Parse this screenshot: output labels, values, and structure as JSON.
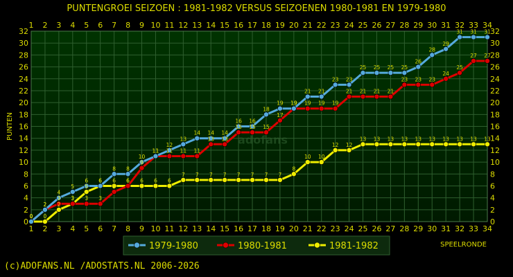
{
  "chart_data": {
    "type": "line",
    "title": "PUNTENGROEI  SEIZOEN : 1981-1982 VERSUS SEIZOENEN 1980-1981 EN 1979-1980",
    "ylabel": "PUNTEN",
    "xlabel": "SPEELRONDE",
    "x": [
      1,
      2,
      3,
      4,
      5,
      6,
      7,
      8,
      9,
      10,
      11,
      12,
      13,
      14,
      15,
      16,
      17,
      18,
      19,
      20,
      21,
      22,
      23,
      24,
      25,
      26,
      27,
      28,
      29,
      30,
      31,
      32,
      33,
      34
    ],
    "xlim": [
      1,
      34
    ],
    "ylim": [
      0,
      32
    ],
    "yticks": [
      0,
      2,
      4,
      6,
      8,
      10,
      12,
      14,
      16,
      18,
      20,
      22,
      24,
      26,
      28,
      30,
      32
    ],
    "grid": true,
    "legend_position": "bottom",
    "series": [
      {
        "name": "1979-1980",
        "color": "#55aadd",
        "values": [
          0,
          2,
          4,
          5,
          6,
          6,
          8,
          8,
          10,
          11,
          12,
          13,
          14,
          14,
          14,
          16,
          16,
          18,
          19,
          19,
          21,
          21,
          23,
          23,
          25,
          25,
          25,
          25,
          26,
          28,
          29,
          31,
          31,
          31
        ]
      },
      {
        "name": "1980-1981",
        "color": "#dd0000",
        "values": [
          0,
          2,
          3,
          3,
          3,
          3,
          5,
          6,
          9,
          11,
          11,
          11,
          11,
          13,
          13,
          15,
          15,
          15,
          17,
          19,
          19,
          19,
          19,
          21,
          21,
          21,
          21,
          23,
          23,
          23,
          24,
          25,
          27,
          27
        ]
      },
      {
        "name": "1981-1982",
        "color": "#eeee00",
        "values": [
          0,
          0,
          2,
          3,
          5,
          6,
          6,
          6,
          6,
          6,
          6,
          7,
          7,
          7,
          7,
          7,
          7,
          7,
          7,
          8,
          10,
          10,
          12,
          12,
          13,
          13,
          13,
          13,
          13,
          13,
          13,
          13,
          13,
          13
        ]
      }
    ]
  },
  "footer": "(c)ADOFANS.NL /ADOSTATS.NL 2006-2026",
  "watermark": "adofans",
  "colors": {
    "background": "#000000",
    "plot_top": "#003300",
    "plot_bottom": "#001a00",
    "text": "#dddd00",
    "grid": "#2f5f2f"
  }
}
